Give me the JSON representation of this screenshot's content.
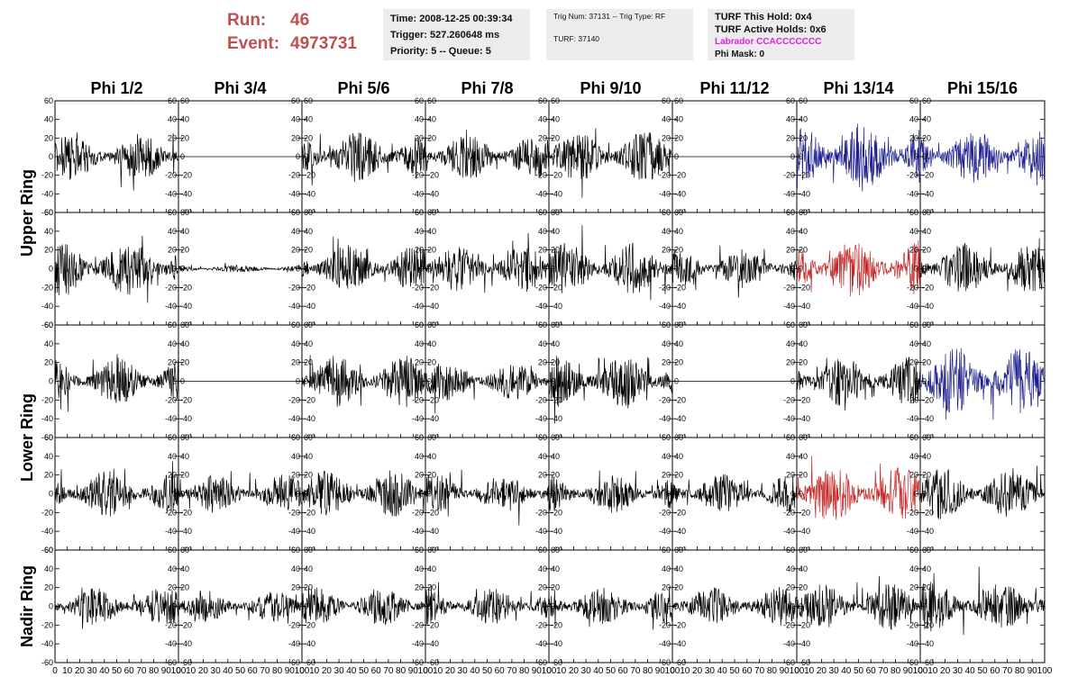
{
  "header": {
    "run_label": "Run:",
    "run_value": "46",
    "event_label": "Event:",
    "event_value": "4973731",
    "time": "Time: 2008-12-25 00:39:34",
    "trigger": "Trigger: 527.260648 ms",
    "priority": "Priority: 5 -- Queue: 5",
    "trig_num": "Trig Num: 37131 -- Trig Type: RF",
    "turf": "TURF: 37140",
    "turf_this_hold": "TURF This Hold: 0x4",
    "turf_active_holds": "TURF Active Holds: 0x6",
    "labrador": "Labrador CCACCCCCCC",
    "phi_mask": "Phi Mask: 0"
  },
  "colors": {
    "trace_default": "#000000",
    "trace_blue": "#1f1f8f",
    "trace_red": "#c62828",
    "run_text": "#c0504d",
    "labrador_text": "#e021e0"
  },
  "chart_data": {
    "type": "line",
    "columns": [
      "Phi 1/2",
      "Phi 3/4",
      "Phi 5/6",
      "Phi 7/8",
      "Phi 9/10",
      "Phi 11/12",
      "Phi 13/14",
      "Phi 15/16"
    ],
    "ring_labels": [
      "Upper Ring",
      "Lower Ring",
      "Nadir Ring"
    ],
    "rows": 5,
    "row_to_ring": [
      0,
      0,
      1,
      1,
      2
    ],
    "x_range": [
      0,
      100
    ],
    "y_range": [
      -60,
      60
    ],
    "x_ticks": [
      0,
      10,
      20,
      30,
      40,
      50,
      60,
      70,
      80,
      90,
      100
    ],
    "y_ticks": [
      -60,
      -40,
      -20,
      0,
      20,
      40,
      60
    ],
    "y_tick_labels": [
      "-60",
      "-40",
      "-20",
      "0",
      "20",
      "40",
      "60"
    ],
    "x_tick_labels": [
      "0",
      "10",
      "20",
      "30",
      "40",
      "50",
      "60",
      "70",
      "80",
      "90",
      "100"
    ],
    "grid": false,
    "trace_amplitude": [
      [
        18,
        0,
        20,
        18,
        20,
        0,
        28,
        22
      ],
      [
        22,
        3,
        18,
        18,
        20,
        15,
        22,
        20
      ],
      [
        18,
        0,
        20,
        15,
        20,
        0,
        20,
        26
      ],
      [
        18,
        15,
        18,
        15,
        15,
        15,
        22,
        20
      ],
      [
        15,
        12,
        15,
        14,
        15,
        15,
        18,
        20
      ]
    ],
    "trace_color": [
      [
        "black",
        "black",
        "black",
        "black",
        "black",
        "black",
        "blue",
        "blue"
      ],
      [
        "black",
        "black",
        "black",
        "black",
        "black",
        "black",
        "red",
        "black"
      ],
      [
        "black",
        "black",
        "black",
        "black",
        "black",
        "black",
        "black",
        "blue"
      ],
      [
        "black",
        "black",
        "black",
        "black",
        "black",
        "black",
        "red",
        "black"
      ],
      [
        "black",
        "black",
        "black",
        "black",
        "black",
        "black",
        "black",
        "black"
      ]
    ]
  }
}
